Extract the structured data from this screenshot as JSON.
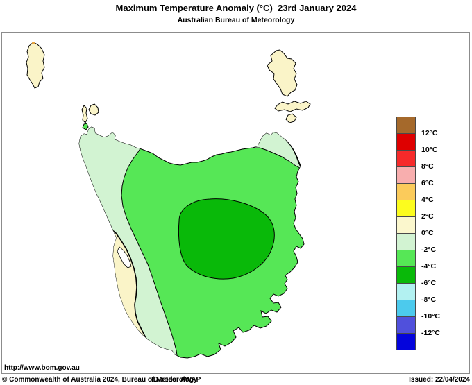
{
  "header": {
    "title": "Maximum Temperature Anomaly (°C)  23rd January 2024",
    "subtitle": "Australian Bureau of Meteorology"
  },
  "legend": {
    "swatch_colors": [
      "#A5692B",
      "#DE0000",
      "#F62A2A",
      "#F8AEAE",
      "#FBCB5B",
      "#FCFC1E",
      "#FBF7CD",
      "#D2F3D2",
      "#56E756",
      "#09B909",
      "#B2F1F1",
      "#4CCAED",
      "#5050DC",
      "#0404DC"
    ],
    "tick_labels": [
      "12°C",
      "10°C",
      "8°C",
      "6°C",
      "4°C",
      "2°C",
      "0°C",
      "-2°C",
      "-4°C",
      "-6°C",
      "-8°C",
      "-10°C",
      "-12°C"
    ]
  },
  "map": {
    "colors": {
      "sea": "#FFFFFF",
      "cream": "#FAF4C8",
      "pale_green": "#D2F3D2",
      "medium_green": "#56E756",
      "dark_green": "#09B909",
      "coast": "#000000",
      "king_island_dot": "#E8A33D"
    }
  },
  "footer": {
    "url": "http://www.bom.gov.au",
    "copyright": "© Commonwealth of Australia 2024, Bureau of Meteorology",
    "id_code": "ID code: AWAP",
    "issued": "Issued: 22/04/2024"
  }
}
